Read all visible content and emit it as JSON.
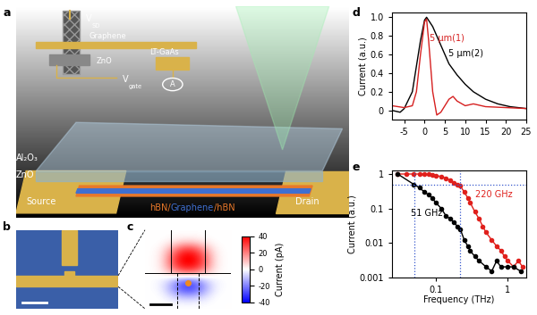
{
  "panels": {
    "a": {
      "letter": "a",
      "inset": {
        "V_SD": {
          "base": "V",
          "sub": "SD"
        },
        "graphene": "Graphene",
        "zno": "ZnO",
        "V_gate": {
          "base": "V",
          "sub": "gate"
        },
        "lt_gaas": "LT-GaAs",
        "ammeter": "A"
      },
      "labels": {
        "al2o3": "Al₂O₃",
        "zno": "ZnO",
        "source": "Source",
        "drain": "Drain"
      },
      "stack": [
        {
          "text": "hBN/",
          "color": "#e8782a"
        },
        {
          "text": "Graphene",
          "color": "#3f6fd0"
        },
        {
          "text": "/hBN",
          "color": "#e8782a"
        }
      ]
    },
    "b": {
      "letter": "b"
    },
    "c": {
      "letter": "c",
      "current_map": {
        "label": "Current (pA)",
        "range": [
          -40,
          40
        ],
        "ticks": [
          -40,
          -20,
          0,
          20,
          40
        ],
        "cells": [
          [
            0,
            0,
            0,
            0,
            0,
            0,
            0,
            0
          ],
          [
            0,
            0,
            2,
            5,
            5,
            2,
            0,
            0
          ],
          [
            0,
            2,
            15,
            30,
            30,
            15,
            2,
            0
          ],
          [
            0,
            3,
            25,
            42,
            42,
            25,
            3,
            0
          ],
          [
            0,
            3,
            25,
            40,
            40,
            25,
            3,
            0
          ],
          [
            0,
            2,
            10,
            20,
            20,
            10,
            2,
            0
          ],
          [
            0,
            -2,
            -10,
            -25,
            -25,
            -10,
            -2,
            0
          ],
          [
            0,
            -2,
            -15,
            -30,
            -30,
            -15,
            -2,
            0
          ],
          [
            0,
            0,
            -5,
            -10,
            -10,
            -5,
            0,
            0
          ],
          [
            0,
            0,
            0,
            0,
            0,
            0,
            0,
            0
          ]
        ]
      }
    }
  },
  "chart_data": [
    {
      "letter": "d",
      "type": "line",
      "ylabel": "Current (a.u.)",
      "xlim": [
        -8,
        25
      ],
      "xticks": [
        -5,
        0,
        5,
        10,
        15,
        20,
        25
      ],
      "ylim": [
        -0.1,
        1.05
      ],
      "yticks": [
        0,
        0.2,
        0.4,
        0.6,
        0.8,
        1.0
      ],
      "series": [
        {
          "name": "5 μm(2)",
          "color": "#000000",
          "x": [
            -8,
            -6,
            -5,
            -3,
            -1,
            0,
            0.5,
            2,
            4,
            6,
            8,
            10,
            12,
            15,
            18,
            21,
            25
          ],
          "values": [
            0,
            -0.02,
            0.02,
            0.2,
            0.75,
            0.97,
            1.0,
            0.9,
            0.7,
            0.5,
            0.38,
            0.28,
            0.2,
            0.12,
            0.07,
            0.04,
            0.02
          ]
        },
        {
          "name": "5 μm(1)",
          "color": "#d62020",
          "x": [
            -8,
            -5,
            -3,
            -2,
            -1,
            0,
            0.5,
            1,
            2,
            3,
            4,
            5,
            6,
            7,
            8,
            10,
            12,
            15,
            20,
            25
          ],
          "values": [
            0.05,
            0.03,
            0.05,
            0.2,
            0.6,
            0.95,
            0.98,
            0.75,
            0.2,
            -0.05,
            -0.02,
            0.05,
            0.12,
            0.15,
            0.1,
            0.05,
            0.07,
            0.04,
            0.03,
            0.02
          ]
        }
      ]
    },
    {
      "letter": "e",
      "type": "line",
      "log": true,
      "xlabel": "Frequency (THz)",
      "ylabel": "Current (a.u.)",
      "xlim": [
        0.025,
        1.8
      ],
      "xticks": [
        0.1,
        1
      ],
      "ylim": [
        0.001,
        1.3
      ],
      "yticks": [
        0.001,
        0.01,
        0.1,
        1
      ],
      "hlines": [
        0.5
      ],
      "vlines": [
        0.051,
        0.22
      ],
      "series": [
        {
          "name": "220 GHz",
          "color": "#e0201c",
          "marker": "o",
          "x": [
            0.03,
            0.04,
            0.05,
            0.06,
            0.07,
            0.08,
            0.09,
            0.1,
            0.12,
            0.14,
            0.16,
            0.18,
            0.2,
            0.22,
            0.25,
            0.28,
            0.3,
            0.35,
            0.4,
            0.45,
            0.5,
            0.6,
            0.7,
            0.8,
            0.9,
            1.0,
            1.2,
            1.4,
            1.6
          ],
          "values": [
            1,
            1,
            1,
            1,
            1,
            0.98,
            0.95,
            0.9,
            0.85,
            0.75,
            0.65,
            0.55,
            0.5,
            0.45,
            0.3,
            0.2,
            0.15,
            0.08,
            0.05,
            0.03,
            0.02,
            0.012,
            0.008,
            0.006,
            0.004,
            0.003,
            0.002,
            0.003,
            0.002
          ]
        },
        {
          "name": "51 GHz",
          "color": "#000000",
          "marker": "o",
          "x": [
            0.03,
            0.05,
            0.06,
            0.07,
            0.08,
            0.09,
            0.1,
            0.12,
            0.14,
            0.16,
            0.18,
            0.2,
            0.22,
            0.25,
            0.28,
            0.3,
            0.35,
            0.4,
            0.5,
            0.6,
            0.7,
            0.8,
            1.0,
            1.2,
            1.5
          ],
          "values": [
            1,
            0.5,
            0.4,
            0.3,
            0.25,
            0.2,
            0.15,
            0.1,
            0.06,
            0.05,
            0.04,
            0.03,
            0.025,
            0.012,
            0.008,
            0.006,
            0.004,
            0.003,
            0.002,
            0.0015,
            0.003,
            0.002,
            0.002,
            0.002,
            0.0015
          ]
        }
      ]
    }
  ]
}
